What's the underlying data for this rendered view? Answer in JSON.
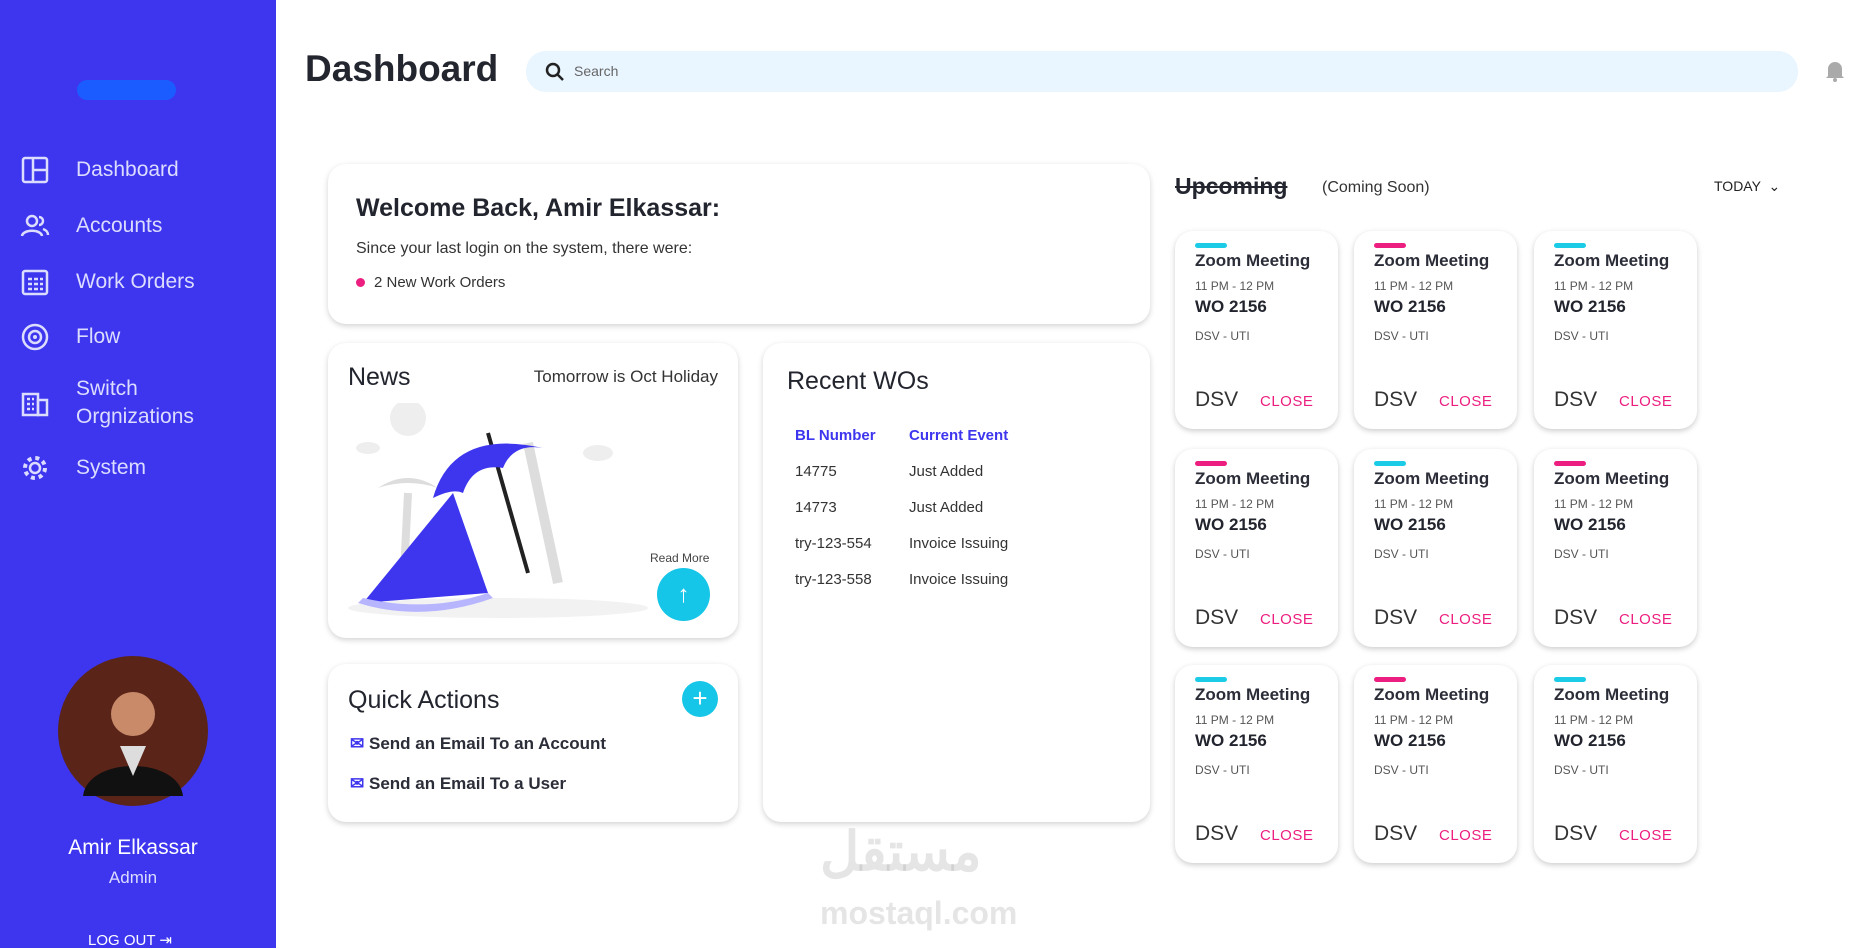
{
  "sidebar": {
    "nav": [
      "Dashboard",
      "Accounts",
      "Work Orders",
      "Flow",
      "Switch\nOrgnizations",
      "System"
    ],
    "user": {
      "name": "Amir Elkassar",
      "role": "Admin"
    },
    "logout": "LOG OUT"
  },
  "header": {
    "title": "Dashboard",
    "search_placeholder": "Search"
  },
  "welcome": {
    "title": "Welcome Back, Amir Elkassar:",
    "text": "Since your last login on the system, there were:",
    "items": [
      "2 New Work Orders"
    ]
  },
  "news": {
    "title": "News",
    "headline": "Tomorrow is Oct Holiday",
    "read_more": "Read More"
  },
  "quick_actions": {
    "title": "Quick Actions",
    "actions": [
      "Send an Email To an Account",
      "Send an Email To a User"
    ]
  },
  "recent_wos": {
    "title": "Recent WOs",
    "columns": [
      "BL Number",
      "Current Event"
    ],
    "rows": [
      [
        "14775",
        "Just Added"
      ],
      [
        "14773",
        "Just Added"
      ],
      [
        "try-123-554",
        "Invoice Issuing"
      ],
      [
        "try-123-558",
        "Invoice Issuing"
      ]
    ]
  },
  "upcoming": {
    "title": "Upcoming",
    "note": "(Coming Soon)",
    "filter": "TODAY",
    "events": [
      {
        "accent": "#1ccbe6",
        "title": "Zoom Meeting",
        "time": "11 PM - 12 PM",
        "wo": "WO 2156",
        "route": "DSV - UTI",
        "company": "DSV",
        "action": "CLOSE"
      },
      {
        "accent": "#ec1f80",
        "title": "Zoom Meeting",
        "time": "11 PM - 12 PM",
        "wo": "WO 2156",
        "route": "DSV - UTI",
        "company": "DSV",
        "action": "CLOSE"
      },
      {
        "accent": "#1ccbe6",
        "title": "Zoom Meeting",
        "time": "11 PM - 12 PM",
        "wo": "WO 2156",
        "route": "DSV - UTI",
        "company": "DSV",
        "action": "CLOSE"
      },
      {
        "accent": "#ec1f80",
        "title": "Zoom Meeting",
        "time": "11 PM - 12 PM",
        "wo": "WO 2156",
        "route": "DSV - UTI",
        "company": "DSV",
        "action": "CLOSE"
      },
      {
        "accent": "#1ccbe6",
        "title": "Zoom Meeting",
        "time": "11 PM - 12 PM",
        "wo": "WO 2156",
        "route": "DSV - UTI",
        "company": "DSV",
        "action": "CLOSE"
      },
      {
        "accent": "#ec1f80",
        "title": "Zoom Meeting",
        "time": "11 PM - 12 PM",
        "wo": "WO 2156",
        "route": "DSV - UTI",
        "company": "DSV",
        "action": "CLOSE"
      },
      {
        "accent": "#1ccbe6",
        "title": "Zoom Meeting",
        "time": "11 PM - 12 PM",
        "wo": "WO 2156",
        "route": "DSV - UTI",
        "company": "DSV",
        "action": "CLOSE"
      },
      {
        "accent": "#ec1f80",
        "title": "Zoom Meeting",
        "time": "11 PM - 12 PM",
        "wo": "WO 2156",
        "route": "DSV - UTI",
        "company": "DSV",
        "action": "CLOSE"
      },
      {
        "accent": "#1ccbe6",
        "title": "Zoom Meeting",
        "time": "11 PM - 12 PM",
        "wo": "WO 2156",
        "route": "DSV - UTI",
        "company": "DSV",
        "action": "CLOSE"
      }
    ]
  },
  "watermark": {
    "arabic": "مستقل",
    "latin": "mostaql.com"
  }
}
